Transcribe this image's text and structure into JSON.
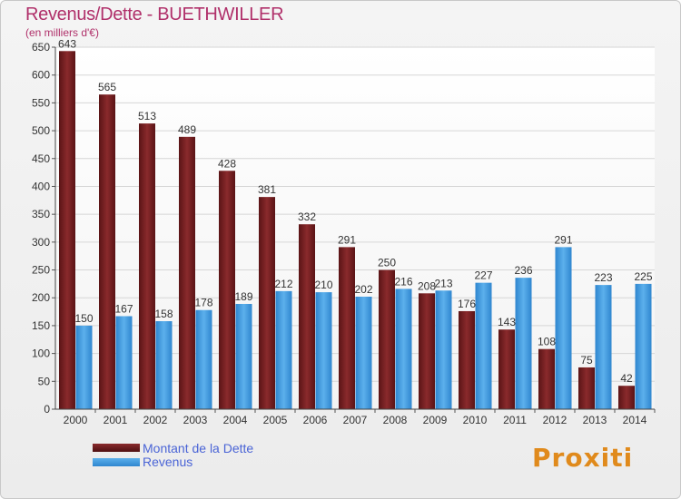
{
  "title": "Revenus/Dette - BUETHWILLER",
  "subtitle": "(en milliers d'€)",
  "logo_text": "Proxiti",
  "colors": {
    "title": "#b0306a",
    "dette": "#6e1d1f",
    "revenus": "#3d98dd",
    "legend_text": "#4a64d6"
  },
  "chart_data": {
    "type": "bar",
    "categories": [
      "2000",
      "2001",
      "2002",
      "2003",
      "2004",
      "2005",
      "2006",
      "2007",
      "2008",
      "2009",
      "2010",
      "2011",
      "2012",
      "2013",
      "2014"
    ],
    "series": [
      {
        "name": "Montant de la Dette",
        "values": [
          643,
          565,
          513,
          489,
          428,
          381,
          332,
          291,
          250,
          208,
          176,
          143,
          108,
          75,
          42
        ]
      },
      {
        "name": "Revenus",
        "values": [
          150,
          167,
          158,
          178,
          189,
          212,
          210,
          202,
          216,
          213,
          227,
          236,
          291,
          223,
          225
        ]
      }
    ],
    "ylim": [
      0,
      650
    ],
    "yticks": [
      0,
      50,
      100,
      150,
      200,
      250,
      300,
      350,
      400,
      450,
      500,
      550,
      600,
      650
    ],
    "grid": true,
    "legend": "bottom-left"
  }
}
